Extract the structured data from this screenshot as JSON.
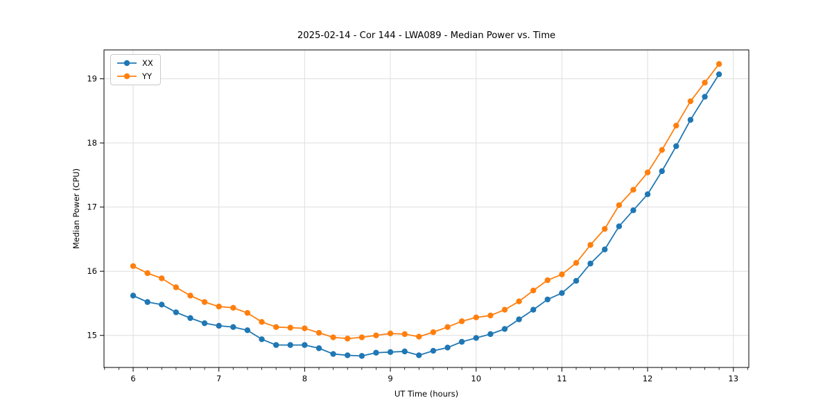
{
  "chart_data": {
    "type": "line",
    "title": "2025-02-14 - Cor 144 - LWA089 - Median Power vs. Time",
    "xlabel": "UT Time (hours)",
    "ylabel": "Median Power (CPU)",
    "xlim": [
      5.66,
      13.18
    ],
    "ylim": [
      14.5,
      19.45
    ],
    "xticks": [
      6,
      7,
      8,
      9,
      10,
      11,
      12,
      13
    ],
    "yticks": [
      15,
      16,
      17,
      18,
      19
    ],
    "x_minor_step_hours": 0.1667,
    "grid": true,
    "legend_position": "upper-left",
    "marker": "circle",
    "x": [
      6.0,
      6.167,
      6.333,
      6.5,
      6.667,
      6.833,
      7.0,
      7.167,
      7.333,
      7.5,
      7.667,
      7.833,
      8.0,
      8.167,
      8.333,
      8.5,
      8.667,
      8.833,
      9.0,
      9.167,
      9.333,
      9.5,
      9.667,
      9.833,
      10.0,
      10.167,
      10.333,
      10.5,
      10.667,
      10.833,
      11.0,
      11.167,
      11.333,
      11.5,
      11.667,
      11.833,
      12.0,
      12.167,
      12.333,
      12.5,
      12.667,
      12.833
    ],
    "series": [
      {
        "name": "XX",
        "color": "#1f77b4",
        "values": [
          15.62,
          15.52,
          15.48,
          15.36,
          15.27,
          15.19,
          15.15,
          15.13,
          15.08,
          14.94,
          14.85,
          14.85,
          14.85,
          14.8,
          14.71,
          14.69,
          14.68,
          14.73,
          14.74,
          14.75,
          14.69,
          14.76,
          14.81,
          14.9,
          14.96,
          15.02,
          15.1,
          15.25,
          15.4,
          15.56,
          15.66,
          15.85,
          16.12,
          16.34,
          16.7,
          16.95,
          17.2,
          17.56,
          17.95,
          18.36,
          18.72,
          19.07
        ]
      },
      {
        "name": "YY",
        "color": "#ff7f0e",
        "values": [
          16.08,
          15.97,
          15.89,
          15.75,
          15.62,
          15.52,
          15.45,
          15.43,
          15.35,
          15.21,
          15.13,
          15.12,
          15.11,
          15.04,
          14.97,
          14.95,
          14.97,
          15.0,
          15.03,
          15.02,
          14.98,
          15.05,
          15.13,
          15.22,
          15.28,
          15.31,
          15.4,
          15.53,
          15.7,
          15.86,
          15.95,
          16.13,
          16.41,
          16.66,
          17.03,
          17.27,
          17.54,
          17.89,
          18.27,
          18.65,
          18.94,
          19.23
        ]
      }
    ]
  }
}
